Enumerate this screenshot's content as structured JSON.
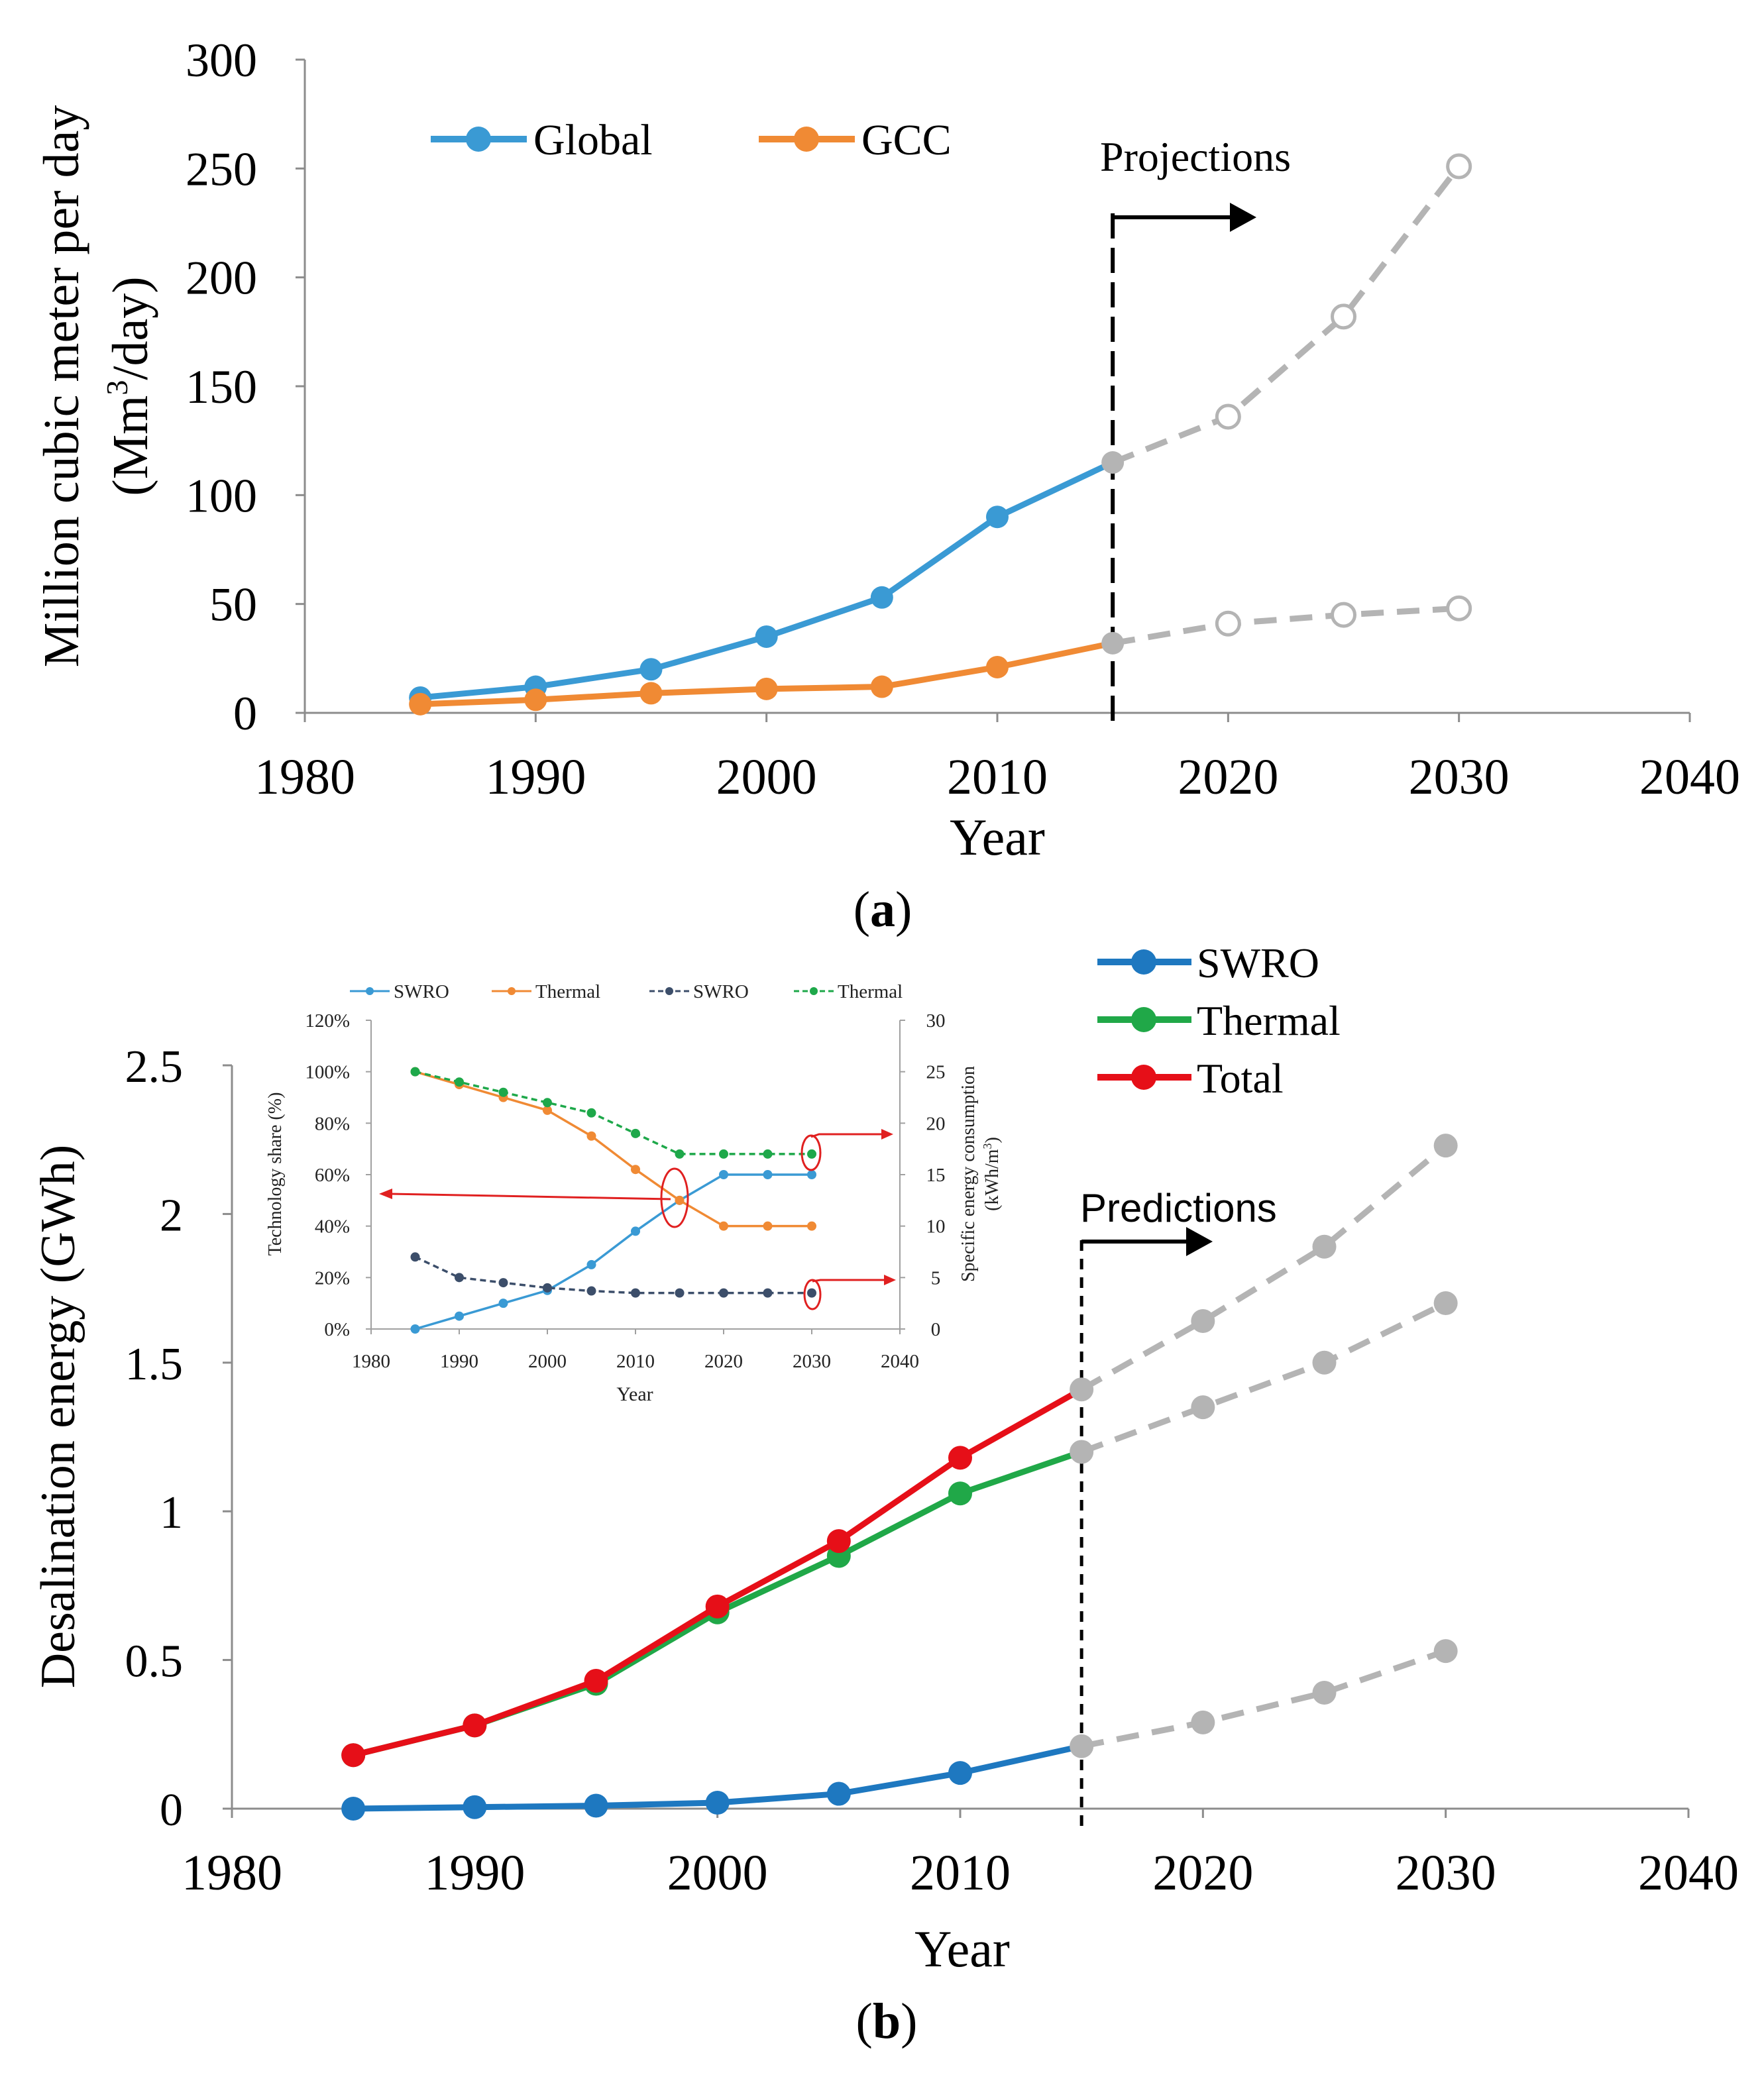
{
  "colors": {
    "global": "#3a9ad4",
    "gcc": "#f08a34",
    "swro": "#1e78c0",
    "thermal": "#20a848",
    "total": "#e60f18",
    "projection": "#b4b4b4",
    "inset_swro": "#3a9ad4",
    "inset_thermal": "#f08a34",
    "inset_swro_energy": "#3c4e6a",
    "inset_thermal_energy": "#1ea84a",
    "inset_arrow": "#e02020"
  },
  "chart_data": [
    {
      "type": "line",
      "panel_label": "(a)",
      "panel_letter": "a",
      "xlabel": "Year",
      "ylabel": "Million cubic meter per day",
      "ylabel2_prefix": "(Mm",
      "ylabel2_sup": "3",
      "ylabel2_suffix": "/day)",
      "xlim": [
        1980,
        2040
      ],
      "ylim": [
        0,
        300
      ],
      "xticks": [
        "1980",
        "1990",
        "2000",
        "2010",
        "2020",
        "2030",
        "2040"
      ],
      "yticks": [
        "0",
        "50",
        "100",
        "150",
        "200",
        "250",
        "300"
      ],
      "annotation": "Projections",
      "divider_x": 2015,
      "series": [
        {
          "name": "Global",
          "x": [
            1985,
            1990,
            1995,
            2000,
            2005,
            2010,
            2015
          ],
          "values": [
            7,
            12,
            20,
            35,
            53,
            90,
            115
          ],
          "projection": {
            "x": [
              2015,
              2020,
              2025,
              2030
            ],
            "values": [
              115,
              136,
              182,
              251
            ]
          }
        },
        {
          "name": "GCC",
          "x": [
            1985,
            1990,
            1995,
            2000,
            2005,
            2010,
            2015
          ],
          "values": [
            4,
            6,
            9,
            11,
            12,
            21,
            32
          ],
          "projection": {
            "x": [
              2015,
              2020,
              2025,
              2030
            ],
            "values": [
              32,
              41,
              45,
              48
            ]
          }
        }
      ]
    },
    {
      "type": "line",
      "panel_label": "(b)",
      "panel_letter": "b",
      "xlabel": "Year",
      "ylabel": "Desalination energy (GWh)",
      "xlim": [
        1980,
        2040
      ],
      "ylim": [
        0,
        2.5
      ],
      "xticks": [
        "1980",
        "1990",
        "2000",
        "2010",
        "2020",
        "2030",
        "2040"
      ],
      "yticks": [
        "0",
        "0.5",
        "1",
        "1.5",
        "2",
        "2.5"
      ],
      "annotation": "Predictions",
      "divider_x": 2015,
      "series": [
        {
          "name": "SWRO",
          "x": [
            1985,
            1990,
            1995,
            2000,
            2005,
            2010,
            2015
          ],
          "values": [
            0.0,
            0.005,
            0.01,
            0.02,
            0.05,
            0.12,
            0.21
          ],
          "projection": {
            "x": [
              2015,
              2020,
              2025,
              2030
            ],
            "values": [
              0.21,
              0.29,
              0.39,
              0.53
            ]
          }
        },
        {
          "name": "Thermal",
          "x": [
            1985,
            1990,
            1995,
            2000,
            2005,
            2010,
            2015
          ],
          "values": [
            0.18,
            0.28,
            0.42,
            0.66,
            0.85,
            1.06,
            1.2
          ],
          "projection": {
            "x": [
              2015,
              2020,
              2025,
              2030
            ],
            "values": [
              1.2,
              1.35,
              1.5,
              1.7
            ]
          }
        },
        {
          "name": "Total",
          "x": [
            1985,
            1990,
            1995,
            2000,
            2005,
            2010,
            2015
          ],
          "values": [
            0.18,
            0.28,
            0.43,
            0.68,
            0.9,
            1.18,
            1.41
          ],
          "projection": {
            "x": [
              2015,
              2020,
              2025,
              2030
            ],
            "values": [
              1.41,
              1.64,
              1.89,
              2.23
            ]
          }
        }
      ],
      "inset": {
        "type": "line",
        "xlabel": "Year",
        "ylabel_left": "Technology share (%)",
        "ylabel_right_1": "Specific energy consumption",
        "ylabel_right_2_prefix": "(kWh/m",
        "ylabel_right_2_sup": "3",
        "ylabel_right_2_suffix": ")",
        "xlim": [
          1980,
          2040
        ],
        "ylim_left": [
          0,
          120
        ],
        "ylim_right": [
          0,
          30
        ],
        "xticks": [
          "1980",
          "1990",
          "2000",
          "2010",
          "2020",
          "2030",
          "2040"
        ],
        "yticks_left": [
          "0%",
          "20%",
          "40%",
          "60%",
          "80%",
          "100%",
          "120%"
        ],
        "yticks_right": [
          "0",
          "5",
          "10",
          "15",
          "20",
          "25",
          "30"
        ],
        "series": [
          {
            "name": "SWRO",
            "axis": "left",
            "style": "solid",
            "x": [
              1985,
              1990,
              1995,
              2000,
              2005,
              2010,
              2015,
              2020,
              2025,
              2030
            ],
            "values": [
              0,
              5,
              10,
              15,
              25,
              38,
              50,
              60,
              60,
              60
            ]
          },
          {
            "name": "Thermal",
            "axis": "left",
            "style": "solid",
            "x": [
              1985,
              1990,
              1995,
              2000,
              2005,
              2010,
              2015,
              2020,
              2025,
              2030
            ],
            "values": [
              100,
              95,
              90,
              85,
              75,
              62,
              50,
              40,
              40,
              40
            ]
          },
          {
            "name": "SWRO",
            "axis": "right",
            "style": "dashed",
            "x": [
              1985,
              1990,
              1995,
              2000,
              2005,
              2010,
              2015,
              2020,
              2025,
              2030
            ],
            "values": [
              7,
              5,
              4.5,
              4,
              3.7,
              3.5,
              3.5,
              3.5,
              3.5,
              3.5
            ]
          },
          {
            "name": "Thermal",
            "axis": "right",
            "style": "dashed",
            "x": [
              1985,
              1990,
              1995,
              2000,
              2005,
              2010,
              2015,
              2020,
              2025,
              2030
            ],
            "values": [
              25,
              24,
              23,
              22,
              21,
              19,
              17,
              17,
              17,
              17
            ]
          }
        ]
      }
    }
  ]
}
